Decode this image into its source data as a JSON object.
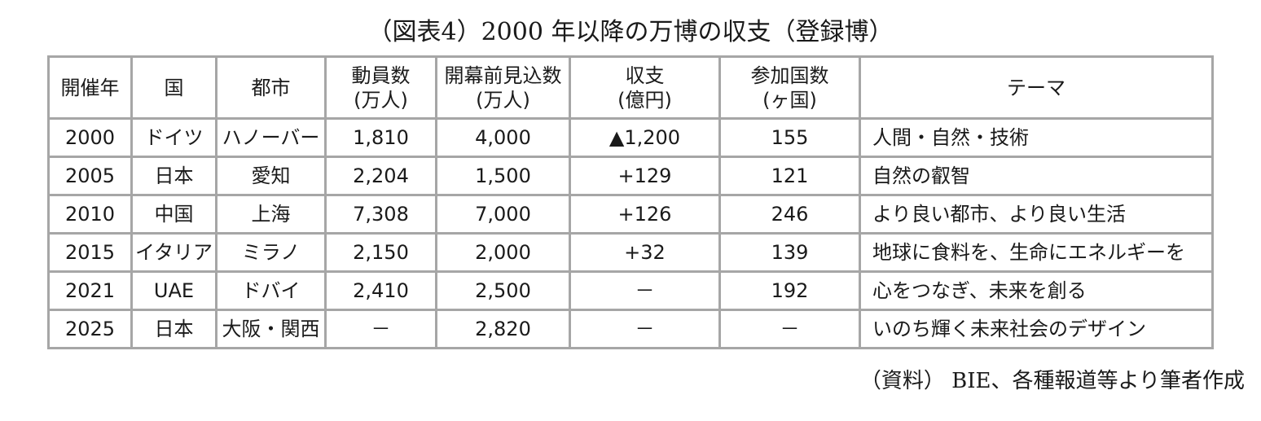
{
  "title": "（図表4）2000 年以降の万博の収支（登録博）",
  "headers": [
    {
      "l1": "開催年",
      "l2": ""
    },
    {
      "l1": "国",
      "l2": ""
    },
    {
      "l1": "都市",
      "l2": ""
    },
    {
      "l1": "動員数",
      "l2": "(万人)"
    },
    {
      "l1": "開幕前見込数",
      "l2": "(万人)"
    },
    {
      "l1": "収支",
      "l2": "(億円)"
    },
    {
      "l1": "参加国数",
      "l2": "(ヶ国)"
    },
    {
      "l1": "テーマ",
      "l2": ""
    }
  ],
  "rows": [
    [
      "2000",
      "ドイツ",
      "ハノーバー",
      "1,810",
      "4,000",
      "▲1,200",
      "155",
      "人間・自然・技術"
    ],
    [
      "2005",
      "日本",
      "愛知",
      "2,204",
      "1,500",
      "+129",
      "121",
      "自然の叡智"
    ],
    [
      "2010",
      "中国",
      "上海",
      "7,308",
      "7,000",
      "+126",
      "246",
      "より良い都市、より良い生活"
    ],
    [
      "2015",
      "イタリア",
      "ミラノ",
      "2,150",
      "2,000",
      "+32",
      "139",
      "地球に食料を、生命にエネルギーを"
    ],
    [
      "2021",
      "UAE",
      "ドバイ",
      "2,410",
      "2,500",
      "－",
      "192",
      "心をつなぎ、未来を創る"
    ],
    [
      "2025",
      "日本",
      "大阪・関西",
      "－",
      "2,820",
      "－",
      "－",
      "いのち輝く未来社会のデザイン"
    ]
  ],
  "source": "（資料） BIE、各種報道等より筆者作成"
}
